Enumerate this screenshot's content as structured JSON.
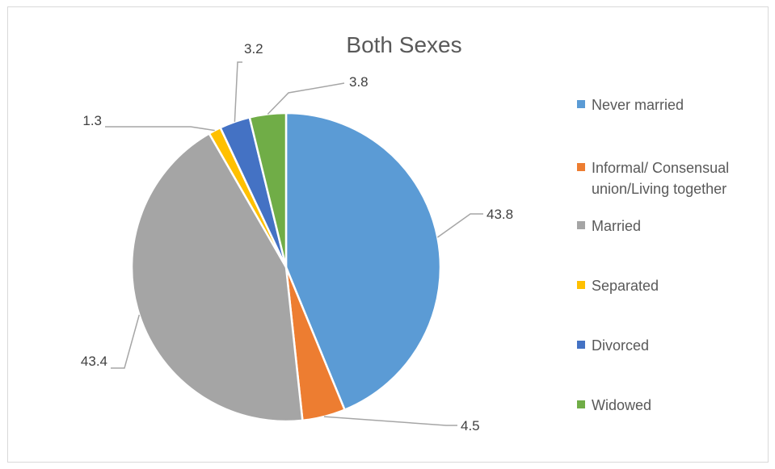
{
  "chart_data": {
    "type": "pie",
    "title": "Both Sexes",
    "legend_position": "right",
    "categories": [
      "Never married",
      "Informal/ Consensual union/Living together",
      "Married",
      "Separated",
      "Divorced",
      "Widowed"
    ],
    "legend_labels": [
      [
        "Never married"
      ],
      [
        "Informal/ Consensual",
        "union/Living together"
      ],
      [
        "Married"
      ],
      [
        "Separated"
      ],
      [
        "Divorced"
      ],
      [
        "Widowed"
      ]
    ],
    "values": [
      43.8,
      4.5,
      43.4,
      1.3,
      3.2,
      3.8
    ],
    "data_labels": [
      "43.8",
      "4.5",
      "43.4",
      "1.3",
      "3.2",
      "3.8"
    ],
    "colors": [
      "#5b9bd5",
      "#ed7d31",
      "#a5a5a5",
      "#ffc000",
      "#4472c4",
      "#70ad47"
    ]
  }
}
